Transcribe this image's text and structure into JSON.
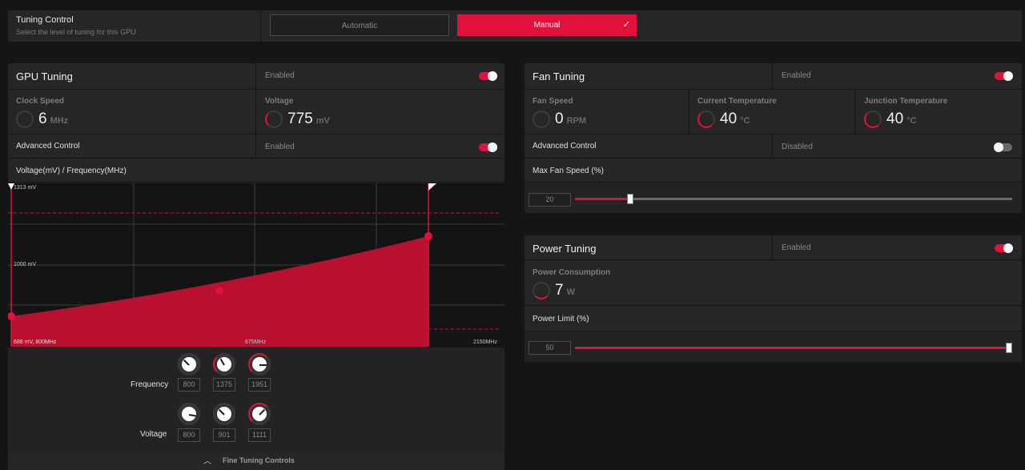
{
  "tuning_control": {
    "title": "Tuning Control",
    "subtitle": "Select the level of tuning for this GPU",
    "automatic_label": "Automatic",
    "manual_label": "Manual",
    "selected": "Manual",
    "check_icon": "check-icon"
  },
  "gpu": {
    "title": "GPU Tuning",
    "status": "Enabled",
    "clock": {
      "label": "Clock Speed",
      "value": "6",
      "unit": "MHz"
    },
    "voltage": {
      "label": "Voltage",
      "value": "775",
      "unit": "mV"
    },
    "advanced": {
      "label": "Advanced Control",
      "status": "Enabled"
    },
    "curve_title": "Voltage(mV) / Frequency(MHz)",
    "chart": {
      "y_top_label": "1313 mV",
      "y_mid_label": "1000 mV",
      "x_left_label": "688 mV, 800MHz",
      "x_mid_label": "675MHz",
      "x_right_label": "2150MHz"
    },
    "frequency_label": "Frequency",
    "frequency_values": [
      "800",
      "1375",
      "1951"
    ],
    "voltage_label": "Voltage",
    "voltage_values": [
      "800",
      "901",
      "1111"
    ],
    "fine_tuning_label": "Fine Tuning Controls"
  },
  "fan": {
    "title": "Fan Tuning",
    "status": "Enabled",
    "speed": {
      "label": "Fan Speed",
      "value": "0",
      "unit": "RPM"
    },
    "current_temp": {
      "label": "Current Temperature",
      "value": "40",
      "unit": "°C"
    },
    "junction_temp": {
      "label": "Junction Temperature",
      "value": "40",
      "unit": "°C"
    },
    "advanced": {
      "label": "Advanced Control",
      "status": "Disabled"
    },
    "max_speed_label": "Max Fan Speed (%)",
    "max_speed_value": "20",
    "max_speed_fraction": 0.12
  },
  "power": {
    "title": "Power Tuning",
    "status": "Enabled",
    "consumption": {
      "label": "Power Consumption",
      "value": "7",
      "unit": "W"
    },
    "limit_label": "Power Limit (%)",
    "limit_value": "50",
    "limit_fraction": 1.0
  },
  "colors": {
    "accent": "#e0123c",
    "panel": "#232323",
    "background": "#151515"
  }
}
